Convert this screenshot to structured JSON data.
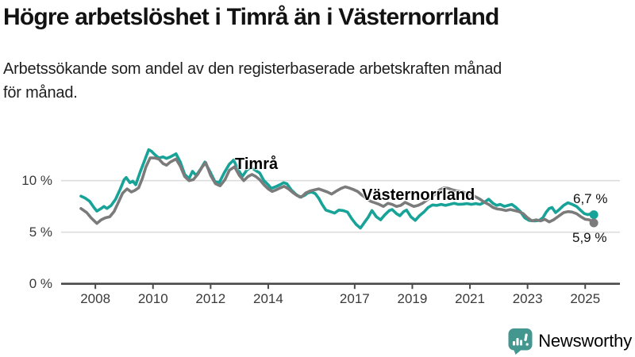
{
  "header": {
    "title": "Högre arbetslöshet i Timrå än i Västernorrland",
    "subtitle_lines": [
      "Arbetssökande som andel av den registerbaserade arbetskraften månad",
      "för månad."
    ]
  },
  "chart_data": {
    "type": "line",
    "unit": "%",
    "grid": "horizontal",
    "ylim": [
      0,
      13.5
    ],
    "x_range_years": [
      2007.75,
      2025.9
    ],
    "y_ticks": [
      {
        "label": "10 %",
        "value": 10
      },
      {
        "label": "5 %",
        "value": 5
      },
      {
        "label": "0 %",
        "value": 0
      }
    ],
    "x_ticks": [
      {
        "label": "2008",
        "year": 2008
      },
      {
        "label": "2010",
        "year": 2010
      },
      {
        "label": "2012",
        "year": 2012
      },
      {
        "label": "2014",
        "year": 2014
      },
      {
        "label": "2017",
        "year": 2017
      },
      {
        "label": "2019",
        "year": 2019
      },
      {
        "label": "2021",
        "year": 2021
      },
      {
        "label": "2023",
        "year": 2023
      },
      {
        "label": "2025",
        "year": 2025
      }
    ],
    "series": [
      {
        "name": "Timrå",
        "color": "#17a398",
        "end_label": "6,7 %",
        "end_value": 6.7,
        "points": [
          [
            2007.75,
            8.5
          ],
          [
            2007.9,
            8.3
          ],
          [
            2008.05,
            8.0
          ],
          [
            2008.2,
            7.4
          ],
          [
            2008.3,
            7.05
          ],
          [
            2008.45,
            7.3
          ],
          [
            2008.55,
            7.5
          ],
          [
            2008.65,
            7.3
          ],
          [
            2008.8,
            7.6
          ],
          [
            2008.95,
            8.2
          ],
          [
            2009.1,
            9.1
          ],
          [
            2009.25,
            10.1
          ],
          [
            2009.32,
            10.3
          ],
          [
            2009.45,
            9.8
          ],
          [
            2009.55,
            9.95
          ],
          [
            2009.65,
            9.6
          ],
          [
            2009.8,
            10.8
          ],
          [
            2009.95,
            11.9
          ],
          [
            2010.1,
            13.0
          ],
          [
            2010.2,
            12.85
          ],
          [
            2010.3,
            12.55
          ],
          [
            2010.45,
            12.2
          ],
          [
            2010.6,
            12.3
          ],
          [
            2010.72,
            12.15
          ],
          [
            2010.85,
            12.3
          ],
          [
            2011.05,
            12.6
          ],
          [
            2011.2,
            11.8
          ],
          [
            2011.35,
            10.6
          ],
          [
            2011.5,
            10.2
          ],
          [
            2011.62,
            10.9
          ],
          [
            2011.75,
            10.5
          ],
          [
            2011.9,
            11.1
          ],
          [
            2012.05,
            11.8
          ],
          [
            2012.25,
            10.75
          ],
          [
            2012.4,
            9.9
          ],
          [
            2012.55,
            9.8
          ],
          [
            2012.72,
            10.75
          ],
          [
            2012.9,
            11.6
          ],
          [
            2013.05,
            12.0
          ],
          [
            2013.2,
            11.1
          ],
          [
            2013.35,
            10.4
          ],
          [
            2013.5,
            11.0
          ],
          [
            2013.65,
            11.3
          ],
          [
            2013.8,
            11.0
          ],
          [
            2013.95,
            10.75
          ],
          [
            2014.1,
            10.0
          ],
          [
            2014.25,
            9.6
          ],
          [
            2014.35,
            9.25
          ],
          [
            2014.5,
            9.4
          ],
          [
            2014.65,
            9.6
          ],
          [
            2014.78,
            9.8
          ],
          [
            2014.9,
            9.7
          ],
          [
            2015.05,
            9.1
          ],
          [
            2015.2,
            8.7
          ],
          [
            2015.35,
            8.4
          ],
          [
            2015.5,
            8.55
          ],
          [
            2015.62,
            8.8
          ],
          [
            2015.75,
            8.9
          ],
          [
            2015.88,
            8.75
          ],
          [
            2016.0,
            8.3
          ],
          [
            2016.12,
            7.7
          ],
          [
            2016.25,
            7.15
          ],
          [
            2016.4,
            7.0
          ],
          [
            2016.55,
            6.85
          ],
          [
            2016.7,
            7.15
          ],
          [
            2016.85,
            7.1
          ],
          [
            2017.0,
            6.95
          ],
          [
            2017.15,
            6.3
          ],
          [
            2017.3,
            5.75
          ],
          [
            2017.45,
            5.4
          ],
          [
            2017.6,
            6.0
          ],
          [
            2017.72,
            6.45
          ],
          [
            2017.85,
            7.1
          ],
          [
            2018.0,
            6.5
          ],
          [
            2018.15,
            6.2
          ],
          [
            2018.3,
            6.7
          ],
          [
            2018.45,
            7.1
          ],
          [
            2018.55,
            7.2
          ],
          [
            2018.7,
            6.8
          ],
          [
            2018.82,
            6.6
          ],
          [
            2018.95,
            7.0
          ],
          [
            2019.05,
            7.15
          ],
          [
            2019.2,
            6.5
          ],
          [
            2019.35,
            6.15
          ],
          [
            2019.5,
            6.6
          ],
          [
            2019.65,
            6.95
          ],
          [
            2019.8,
            7.4
          ],
          [
            2019.95,
            7.65
          ],
          [
            2020.1,
            7.6
          ],
          [
            2020.25,
            7.7
          ],
          [
            2020.4,
            7.6
          ],
          [
            2020.55,
            7.7
          ],
          [
            2020.7,
            7.8
          ],
          [
            2020.85,
            7.7
          ],
          [
            2021.0,
            7.72
          ],
          [
            2021.15,
            7.78
          ],
          [
            2021.3,
            7.7
          ],
          [
            2021.45,
            7.78
          ],
          [
            2021.6,
            7.7
          ],
          [
            2021.75,
            7.9
          ],
          [
            2021.9,
            8.2
          ],
          [
            2022.05,
            7.8
          ],
          [
            2022.18,
            7.6
          ],
          [
            2022.3,
            7.7
          ],
          [
            2022.45,
            7.5
          ],
          [
            2022.6,
            7.62
          ],
          [
            2022.7,
            7.7
          ],
          [
            2022.85,
            7.4
          ],
          [
            2023.0,
            7.0
          ],
          [
            2023.15,
            6.4
          ],
          [
            2023.3,
            6.15
          ],
          [
            2023.5,
            6.1
          ],
          [
            2023.65,
            6.15
          ],
          [
            2023.78,
            6.4
          ],
          [
            2023.9,
            6.95
          ],
          [
            2024.0,
            7.3
          ],
          [
            2024.1,
            7.4
          ],
          [
            2024.22,
            6.9
          ],
          [
            2024.35,
            7.2
          ],
          [
            2024.5,
            7.6
          ],
          [
            2024.65,
            7.85
          ],
          [
            2024.8,
            7.7
          ],
          [
            2024.95,
            7.5
          ],
          [
            2025.1,
            7.1
          ],
          [
            2025.22,
            6.8
          ],
          [
            2025.35,
            6.7
          ],
          [
            2025.45,
            6.8
          ],
          [
            2025.55,
            6.7
          ]
        ]
      },
      {
        "name": "Västernorrland",
        "color": "#7b7b7b",
        "end_label": "5,9 %",
        "end_value": 5.9,
        "points": [
          [
            2007.75,
            7.3
          ],
          [
            2007.95,
            6.9
          ],
          [
            2008.1,
            6.4
          ],
          [
            2008.3,
            5.85
          ],
          [
            2008.45,
            6.2
          ],
          [
            2008.6,
            6.4
          ],
          [
            2008.75,
            6.5
          ],
          [
            2008.9,
            7.0
          ],
          [
            2009.05,
            7.9
          ],
          [
            2009.2,
            8.8
          ],
          [
            2009.35,
            9.2
          ],
          [
            2009.5,
            8.9
          ],
          [
            2009.62,
            9.05
          ],
          [
            2009.75,
            9.3
          ],
          [
            2009.88,
            10.2
          ],
          [
            2010.0,
            11.3
          ],
          [
            2010.15,
            12.2
          ],
          [
            2010.3,
            12.2
          ],
          [
            2010.45,
            12.1
          ],
          [
            2010.6,
            11.65
          ],
          [
            2010.72,
            11.5
          ],
          [
            2010.85,
            11.8
          ],
          [
            2011.05,
            12.1
          ],
          [
            2011.2,
            11.4
          ],
          [
            2011.35,
            10.4
          ],
          [
            2011.5,
            10.0
          ],
          [
            2011.65,
            10.1
          ],
          [
            2011.8,
            10.6
          ],
          [
            2011.95,
            11.3
          ],
          [
            2012.08,
            11.75
          ],
          [
            2012.25,
            10.5
          ],
          [
            2012.42,
            9.7
          ],
          [
            2012.58,
            9.5
          ],
          [
            2012.75,
            10.1
          ],
          [
            2012.9,
            11.0
          ],
          [
            2013.08,
            11.35
          ],
          [
            2013.25,
            10.5
          ],
          [
            2013.4,
            10.0
          ],
          [
            2013.55,
            10.4
          ],
          [
            2013.68,
            10.6
          ],
          [
            2013.82,
            10.4
          ],
          [
            2013.95,
            10.1
          ],
          [
            2014.1,
            9.6
          ],
          [
            2014.25,
            9.2
          ],
          [
            2014.38,
            8.95
          ],
          [
            2014.52,
            9.1
          ],
          [
            2014.67,
            9.3
          ],
          [
            2014.8,
            9.45
          ],
          [
            2014.95,
            9.2
          ],
          [
            2015.1,
            8.85
          ],
          [
            2015.25,
            8.55
          ],
          [
            2015.4,
            8.4
          ],
          [
            2015.55,
            8.8
          ],
          [
            2015.7,
            9.0
          ],
          [
            2015.85,
            9.1
          ],
          [
            2016.0,
            9.2
          ],
          [
            2016.15,
            9.05
          ],
          [
            2016.3,
            8.9
          ],
          [
            2016.45,
            8.7
          ],
          [
            2016.62,
            9.0
          ],
          [
            2016.78,
            9.25
          ],
          [
            2016.92,
            9.4
          ],
          [
            2017.05,
            9.3
          ],
          [
            2017.2,
            9.15
          ],
          [
            2017.35,
            8.95
          ],
          [
            2017.5,
            8.6
          ],
          [
            2017.65,
            8.3
          ],
          [
            2017.8,
            8.0
          ],
          [
            2017.95,
            7.85
          ],
          [
            2018.1,
            7.7
          ],
          [
            2018.25,
            7.5
          ],
          [
            2018.4,
            7.8
          ],
          [
            2018.55,
            7.7
          ],
          [
            2018.7,
            7.5
          ],
          [
            2018.85,
            7.6
          ],
          [
            2019.0,
            7.9
          ],
          [
            2019.15,
            7.7
          ],
          [
            2019.3,
            7.5
          ],
          [
            2019.45,
            7.6
          ],
          [
            2019.6,
            7.8
          ],
          [
            2019.75,
            8.1
          ],
          [
            2019.9,
            8.4
          ],
          [
            2020.05,
            8.7
          ],
          [
            2020.2,
            9.1
          ],
          [
            2020.35,
            9.3
          ],
          [
            2020.5,
            9.25
          ],
          [
            2020.65,
            9.1
          ],
          [
            2020.8,
            9.0
          ],
          [
            2021.0,
            8.9
          ],
          [
            2021.2,
            8.7
          ],
          [
            2021.4,
            8.5
          ],
          [
            2021.6,
            8.2
          ],
          [
            2021.75,
            7.9
          ],
          [
            2021.9,
            7.7
          ],
          [
            2022.05,
            7.4
          ],
          [
            2022.2,
            7.25
          ],
          [
            2022.35,
            7.2
          ],
          [
            2022.5,
            7.1
          ],
          [
            2022.65,
            7.2
          ],
          [
            2022.8,
            7.1
          ],
          [
            2022.95,
            7.0
          ],
          [
            2023.1,
            6.8
          ],
          [
            2023.25,
            6.4
          ],
          [
            2023.4,
            6.1
          ],
          [
            2023.55,
            6.2
          ],
          [
            2023.7,
            6.1
          ],
          [
            2023.85,
            6.25
          ],
          [
            2024.0,
            6.0
          ],
          [
            2024.15,
            6.2
          ],
          [
            2024.3,
            6.5
          ],
          [
            2024.5,
            6.9
          ],
          [
            2024.65,
            7.0
          ],
          [
            2024.8,
            6.95
          ],
          [
            2024.95,
            6.8
          ],
          [
            2025.1,
            6.5
          ],
          [
            2025.25,
            6.25
          ],
          [
            2025.4,
            6.2
          ],
          [
            2025.55,
            5.9
          ]
        ]
      }
    ]
  },
  "colors": {
    "grid": "#dcdcdc",
    "axis": "#4a4a4a",
    "tick_text": "#3a3a3a",
    "timra": "#17a398",
    "vasternorrland": "#7b7b7b",
    "logo": "#43978f"
  },
  "logo": {
    "text": "Newsworthy"
  }
}
